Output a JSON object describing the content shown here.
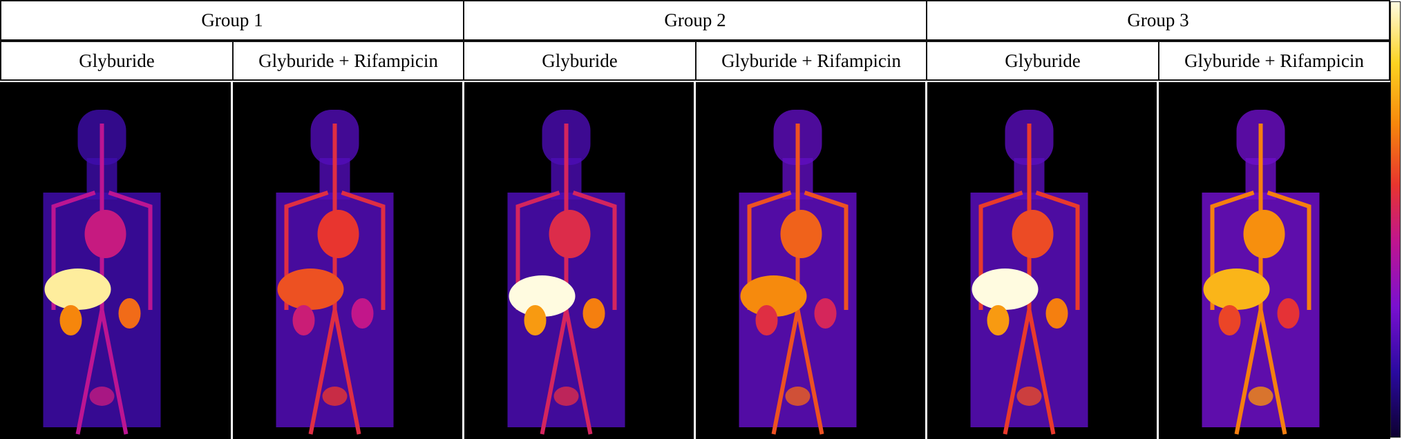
{
  "groups": [
    {
      "label": "Group 1",
      "columns": [
        {
          "label": "Glyburide",
          "liver_intensity": 0.95
        },
        {
          "label": "Glyburide + Rifampicin",
          "liver_intensity": 0.62
        }
      ]
    },
    {
      "label": "Group 2",
      "columns": [
        {
          "label": "Glyburide",
          "liver_intensity": 1.0
        },
        {
          "label": "Glyburide + Rifampicin",
          "liver_intensity": 0.72
        }
      ]
    },
    {
      "label": "Group 3",
      "columns": [
        {
          "label": "Glyburide",
          "liver_intensity": 1.0
        },
        {
          "label": "Glyburide + Rifampicin",
          "liver_intensity": 0.8
        }
      ]
    }
  ],
  "colormap": {
    "name": "fire",
    "stops": [
      "#0d0030",
      "#2a0aa0",
      "#7a10d0",
      "#c0158e",
      "#e8352e",
      "#f6870c",
      "#fcd321",
      "#fffbe0"
    ]
  }
}
